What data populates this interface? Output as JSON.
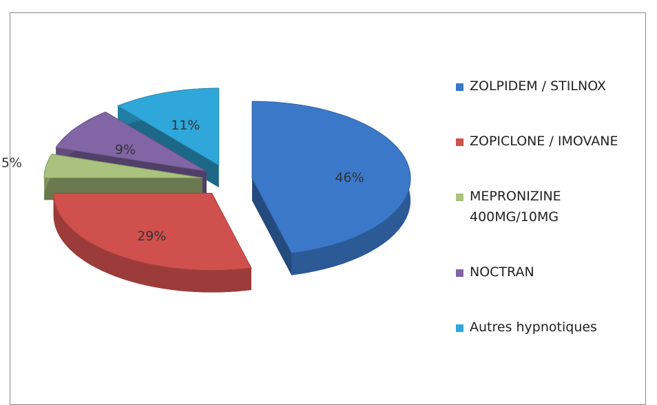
{
  "chart_data": {
    "type": "pie",
    "categories": [
      "ZOLPIDEM / STILNOX",
      "ZOPICLONE / IMOVANE",
      "MEPRONIZINE 400MG/10MG",
      "NOCTRAN",
      "Autres hypnotiques"
    ],
    "values": [
      46,
      29,
      5,
      9,
      11
    ],
    "value_labels": [
      "46%",
      "29%",
      "5%",
      "9%",
      "11%"
    ],
    "colors": [
      "#3b78c9",
      "#d0504d",
      "#a9c27d",
      "#8165a5",
      "#2fa7da"
    ],
    "legend": "right"
  }
}
